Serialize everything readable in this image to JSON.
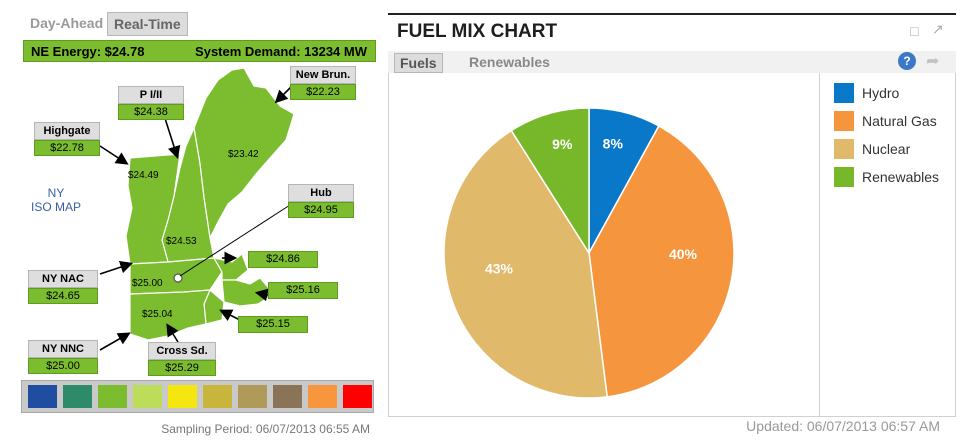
{
  "left": {
    "tabs": [
      {
        "label": "Day-Ahead",
        "active": false
      },
      {
        "label": "Real-Time",
        "active": true
      }
    ],
    "ne_energy": "NE Energy:  $24.78",
    "system_demand": "System Demand:  13234 MW",
    "ny_iso_map": [
      "NY",
      "ISO MAP"
    ],
    "zones": {
      "new_brun": {
        "name": "New Brun.",
        "price": "$22.23"
      },
      "pi_ii": {
        "name": "P I/II",
        "price": "$24.38"
      },
      "highgate": {
        "name": "Highgate",
        "price": "$22.78"
      },
      "hub": {
        "name": "Hub",
        "price": "$24.95"
      },
      "ny_nac": {
        "name": "NY NAC",
        "price": "$24.65"
      },
      "ny_nnc": {
        "name": "NY NNC",
        "price": "$25.00"
      },
      "cross_sd": {
        "name": "Cross Sd.",
        "price": "$25.29"
      }
    },
    "standalone_prices": {
      "ri": "$24.86",
      "sema": "$25.16",
      "ct_east": "$25.15"
    },
    "map_values": {
      "maine": "$23.42",
      "vermont": "$24.49",
      "nh": "$24.53",
      "wcma": "$25.00",
      "ct": "$25.04"
    },
    "legend_colors": [
      "#1f4ea0",
      "#2e8b6a",
      "#7bbd2f",
      "#bcdc5a",
      "#f4e60f",
      "#c8b63c",
      "#b09a5a",
      "#8a7356",
      "#f7963d",
      "#ff0000"
    ],
    "sampling": "Sampling Period: 06/07/2013 06:55 AM"
  },
  "right": {
    "title": "FUEL MIX CHART",
    "tabs": [
      {
        "label": "Fuels",
        "active": true
      },
      {
        "label": "Renewables",
        "active": false
      }
    ],
    "updated": "Updated: 06/07/2013 06:57 AM"
  },
  "chart_data": {
    "type": "pie",
    "title": "FUEL MIX CHART",
    "slices": [
      {
        "name": "Hydro",
        "value": 8,
        "label": "8%",
        "color": "#0a78c8"
      },
      {
        "name": "Natural Gas",
        "value": 40,
        "label": "40%",
        "color": "#f5963e"
      },
      {
        "name": "Nuclear",
        "value": 43,
        "label": "43%",
        "color": "#e0b96b"
      },
      {
        "name": "Renewables",
        "value": 9,
        "label": "9%",
        "color": "#76b82a"
      }
    ],
    "legend_position": "right"
  }
}
